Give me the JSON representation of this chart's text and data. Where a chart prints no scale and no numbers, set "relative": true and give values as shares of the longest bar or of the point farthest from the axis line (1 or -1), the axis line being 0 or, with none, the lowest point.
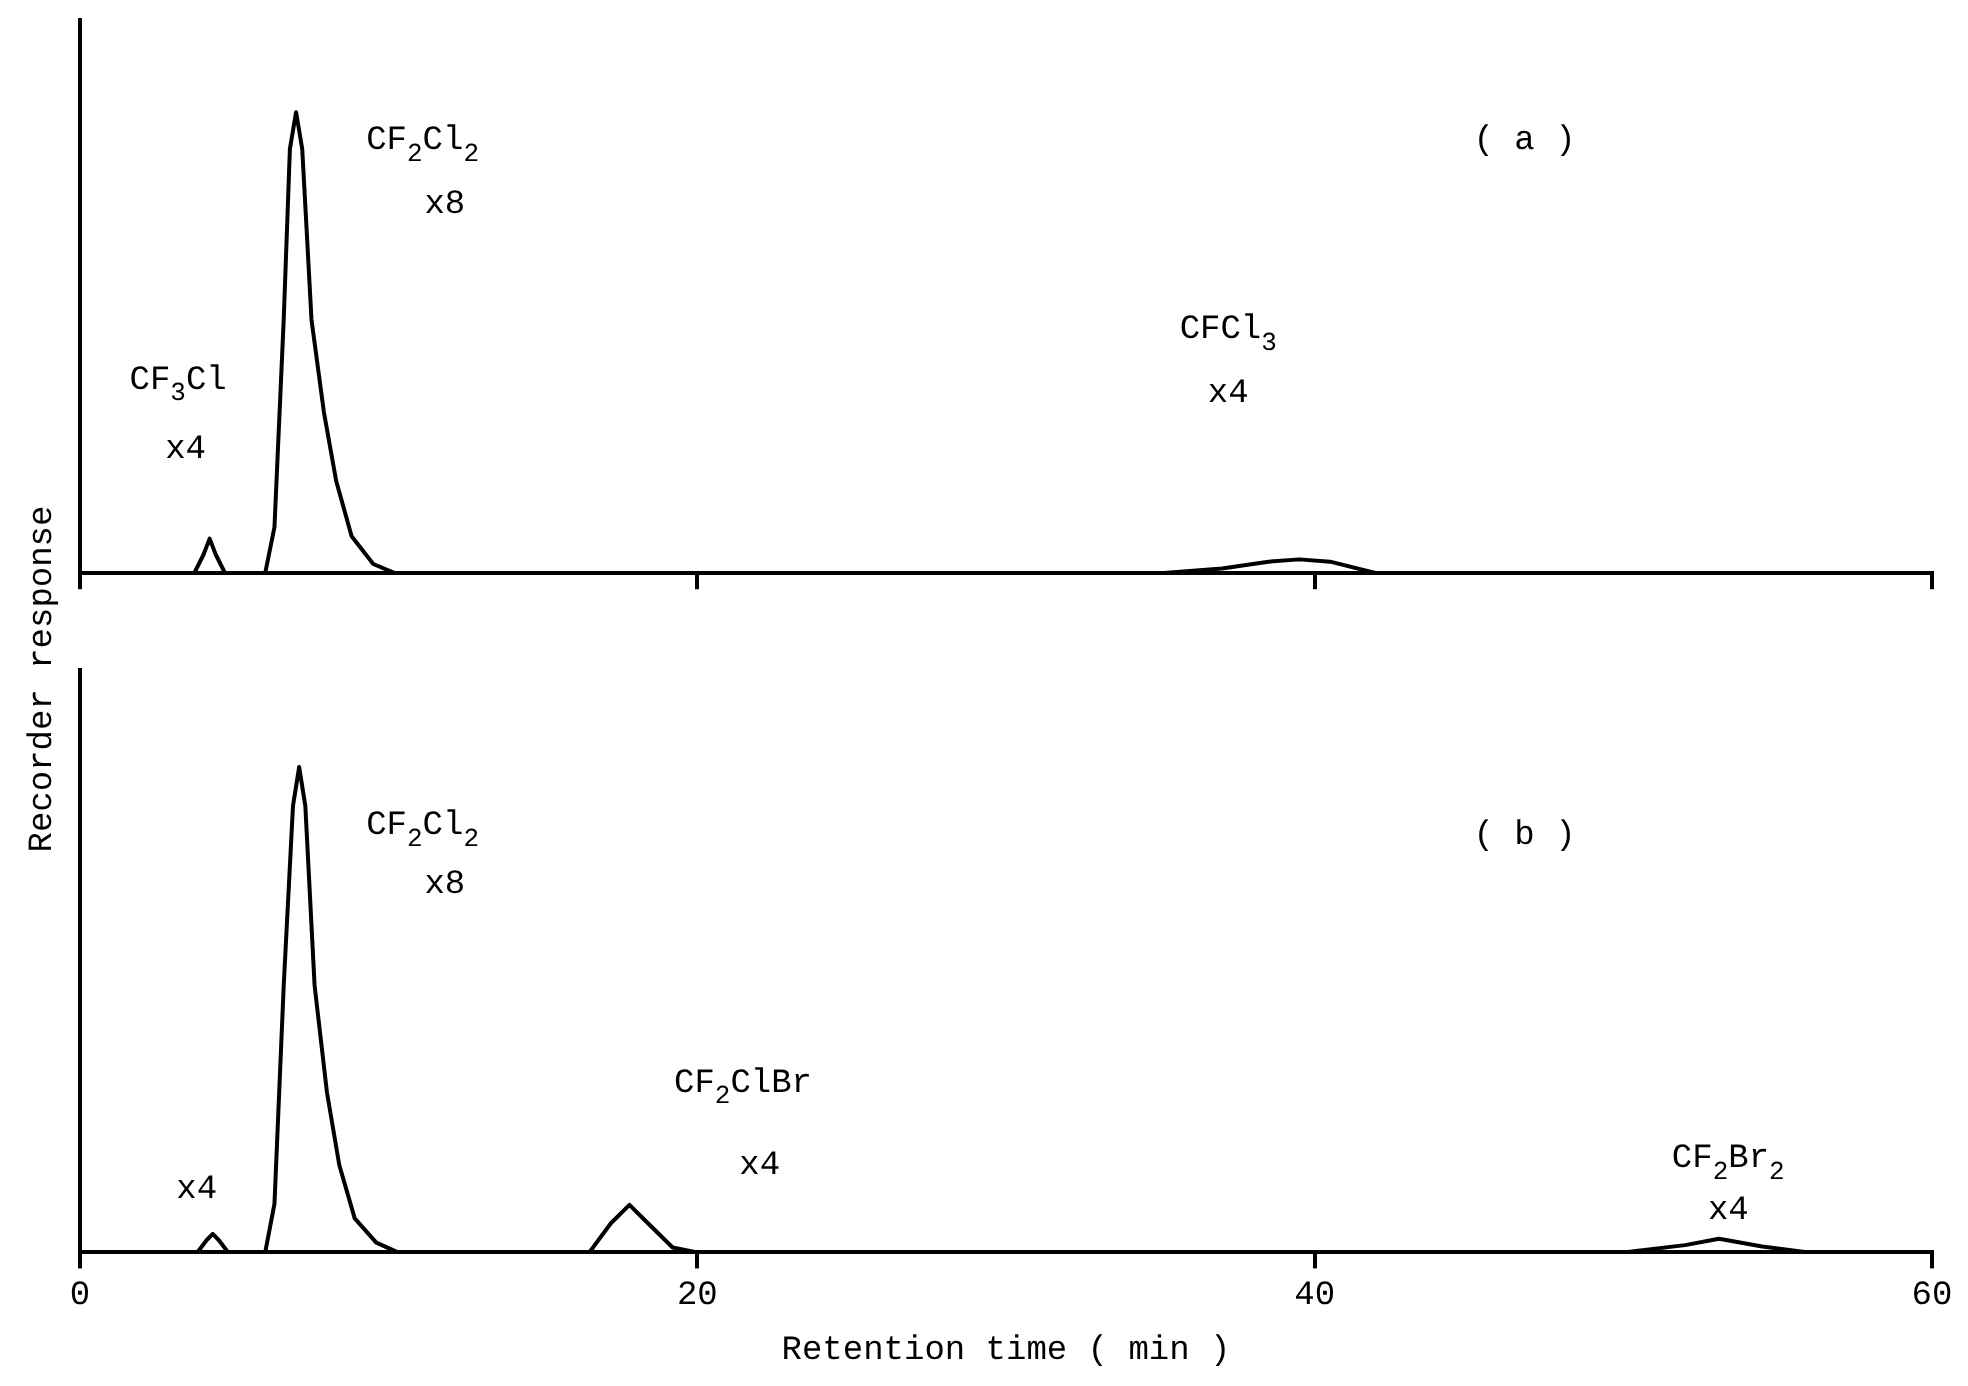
{
  "chart_data": [
    {
      "type": "line",
      "relative": true,
      "ylabel": "Recorder response",
      "tick_labels": false,
      "xlim": [
        0,
        60
      ],
      "xticks": [
        {
          "value": 0,
          "label": null
        },
        {
          "value": 20,
          "label": null
        },
        {
          "value": 40,
          "label": null
        },
        {
          "value": 60,
          "label": null
        }
      ],
      "x": [
        0,
        3.7,
        4.0,
        4.2,
        4.4,
        4.7,
        6.0,
        6.3,
        6.6,
        6.8,
        7.0,
        7.2,
        7.5,
        7.9,
        8.3,
        8.8,
        9.5,
        10.2,
        35,
        37,
        38.5,
        39.5,
        40.5,
        42,
        60
      ],
      "series": [
        {
          "color": "#000000",
          "values": [
            0,
            0,
            0.04,
            0.075,
            0.04,
            0,
            0,
            0.1,
            0.55,
            0.92,
            1,
            0.92,
            0.55,
            0.35,
            0.2,
            0.08,
            0.02,
            0,
            0,
            0.01,
            0.025,
            0.03,
            0.025,
            0,
            0
          ]
        }
      ],
      "annotations": [
        "CF$_{2}$Cl$_{2}$",
        "x8",
        "CF$_{3}$Cl",
        "x4",
        "CFCl$_{3}$",
        "x4",
        "( a )"
      ]
    },
    {
      "type": "line",
      "relative": true,
      "xlabel": "Retention time ( min )",
      "tick_labels": "x",
      "xlim": [
        0,
        60
      ],
      "xticks": [
        0,
        20,
        40,
        60
      ],
      "x": [
        0,
        3.8,
        4.1,
        4.3,
        4.5,
        4.8,
        6.0,
        6.3,
        6.6,
        6.9,
        7.1,
        7.3,
        7.6,
        8.0,
        8.4,
        8.9,
        9.6,
        10.3,
        16.5,
        17.2,
        17.8,
        18.4,
        19.2,
        20,
        50,
        52,
        53.1,
        54.5,
        56,
        60
      ],
      "series": [
        {
          "color": "#000000",
          "values": [
            0,
            0,
            0.025,
            0.038,
            0.025,
            0,
            0,
            0.1,
            0.55,
            0.92,
            1,
            0.92,
            0.55,
            0.33,
            0.18,
            0.07,
            0.02,
            0,
            0,
            0.06,
            0.098,
            0.06,
            0.01,
            0,
            0,
            0.015,
            0.028,
            0.012,
            0,
            0
          ]
        }
      ],
      "annotations": [
        "CF$_{2}$Cl$_{2}$",
        "x8",
        "x4",
        "CF$_{2}$ClBr",
        "x4",
        "CF$_{2}$Br$_{2}$",
        "x4",
        "( b )"
      ]
    }
  ]
}
